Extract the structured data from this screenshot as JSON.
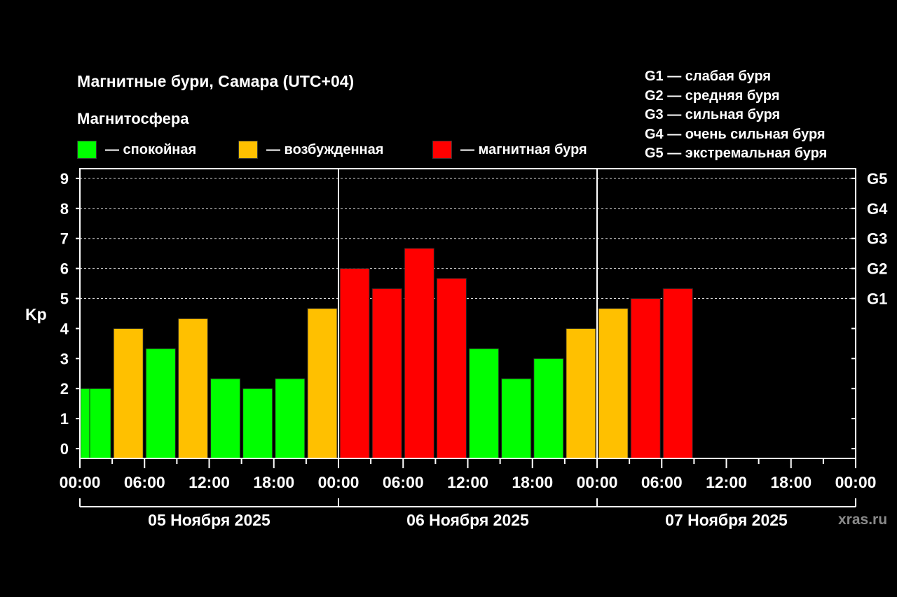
{
  "colors": {
    "calm": "#00ff00",
    "excited": "#ffc000",
    "storm": "#ff0000",
    "background": "#000000",
    "grid": "#d8d8d8",
    "watermark": "#8a8a8a"
  },
  "header": {
    "title": "Магнитные бури, Самара (UTC+04)",
    "subtitle": "Магнитосфера"
  },
  "legend": {
    "calm_label": "— спокойная",
    "excited_label": "— возбужденная",
    "storm_label": "— магнитная буря"
  },
  "storm_levels": [
    "G1 — слабая буря",
    "G2 — средняя буря",
    "G3 — сильная буря",
    "G4 — очень сильная буря",
    "G5 — экстремальная буря"
  ],
  "watermark": "xras.ru",
  "chart_data": {
    "type": "bar",
    "ylabel": "Kp",
    "ylim": [
      0,
      9
    ],
    "y_ticks": [
      "0",
      "1",
      "2",
      "3",
      "4",
      "5",
      "6",
      "7",
      "8",
      "9"
    ],
    "right_ticks": [
      {
        "kp": 5,
        "label": "G1"
      },
      {
        "kp": 6,
        "label": "G2"
      },
      {
        "kp": 7,
        "label": "G3"
      },
      {
        "kp": 8,
        "label": "G4"
      },
      {
        "kp": 9,
        "label": "G5"
      }
    ],
    "x_tick_labels": [
      "00:00",
      "06:00",
      "12:00",
      "18:00",
      "00:00",
      "06:00",
      "12:00",
      "18:00",
      "00:00",
      "06:00",
      "12:00",
      "18:00",
      "00:00"
    ],
    "days": [
      "05 Ноября 2025",
      "06 Ноября 2025",
      "07 Ноября 2025"
    ],
    "grid": "dashed horizontal at Kp 5-9",
    "series": [
      {
        "values": [
          {
            "date": "05 Ноября 2025",
            "start": "00:00",
            "kp": 2.0,
            "level": "calm"
          },
          {
            "date": "05 Ноября 2025",
            "start": "03:00",
            "kp": 4.0,
            "level": "excited"
          },
          {
            "date": "05 Ноября 2025",
            "start": "06:00",
            "kp": 3.33,
            "level": "calm"
          },
          {
            "date": "05 Ноября 2025",
            "start": "09:00",
            "kp": 4.33,
            "level": "excited"
          },
          {
            "date": "05 Ноября 2025",
            "start": "12:00",
            "kp": 2.33,
            "level": "calm"
          },
          {
            "date": "05 Ноября 2025",
            "start": "15:00",
            "kp": 2.0,
            "level": "calm"
          },
          {
            "date": "05 Ноября 2025",
            "start": "18:00",
            "kp": 2.33,
            "level": "calm"
          },
          {
            "date": "05 Ноября 2025",
            "start": "21:00",
            "kp": 4.67,
            "level": "excited"
          },
          {
            "date": "06 Ноября 2025",
            "start": "00:00",
            "kp": 6.0,
            "level": "storm"
          },
          {
            "date": "06 Ноября 2025",
            "start": "03:00",
            "kp": 5.33,
            "level": "storm"
          },
          {
            "date": "06 Ноября 2025",
            "start": "06:00",
            "kp": 6.67,
            "level": "storm"
          },
          {
            "date": "06 Ноября 2025",
            "start": "09:00",
            "kp": 5.67,
            "level": "storm"
          },
          {
            "date": "06 Ноября 2025",
            "start": "12:00",
            "kp": 3.33,
            "level": "calm"
          },
          {
            "date": "06 Ноября 2025",
            "start": "15:00",
            "kp": 2.33,
            "level": "calm"
          },
          {
            "date": "06 Ноября 2025",
            "start": "18:00",
            "kp": 3.0,
            "level": "calm"
          },
          {
            "date": "06 Ноября 2025",
            "start": "21:00",
            "kp": 4.0,
            "level": "excited"
          },
          {
            "date": "07 Ноября 2025",
            "start": "00:00",
            "kp": 4.67,
            "level": "excited"
          },
          {
            "date": "07 Ноября 2025",
            "start": "03:00",
            "kp": 5.0,
            "level": "storm"
          },
          {
            "date": "07 Ноября 2025",
            "start": "06:00",
            "kp": 5.33,
            "level": "storm"
          }
        ]
      }
    ]
  }
}
